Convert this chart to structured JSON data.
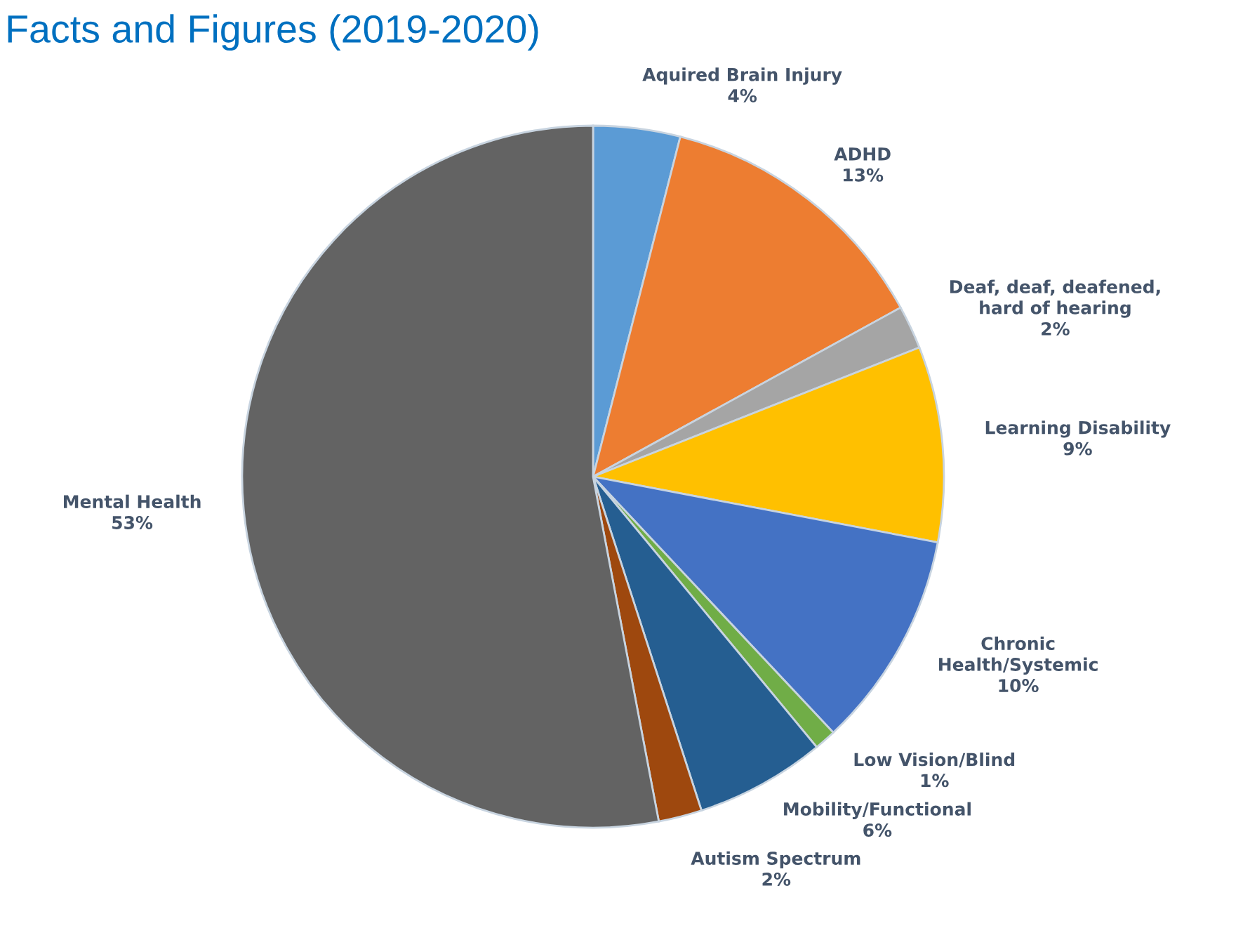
{
  "chart_data": {
    "type": "pie",
    "title": "Facts and Figures (2019-2020)",
    "categories": [
      "Aquired Brain Injury",
      "ADHD",
      "Deaf, deaf, deafened,\nhard of hearing",
      "Learning Disability",
      "Chronic\nHealth/Systemic",
      "Low Vision/Blind",
      "Mobility/Functional",
      "Autism Spectrum",
      "Mental Health"
    ],
    "values": [
      4,
      13,
      2,
      9,
      10,
      1,
      6,
      2,
      53
    ],
    "colors": [
      "#5b9bd5",
      "#ed7d31",
      "#a5a5a5",
      "#ffc000",
      "#4472c4",
      "#70ad47",
      "#255e91",
      "#9e480e",
      "#636363"
    ],
    "value_labels": [
      "4%",
      "13%",
      "2%",
      "9%",
      "10%",
      "1%",
      "6%",
      "2%",
      "53%"
    ],
    "legend": false
  }
}
